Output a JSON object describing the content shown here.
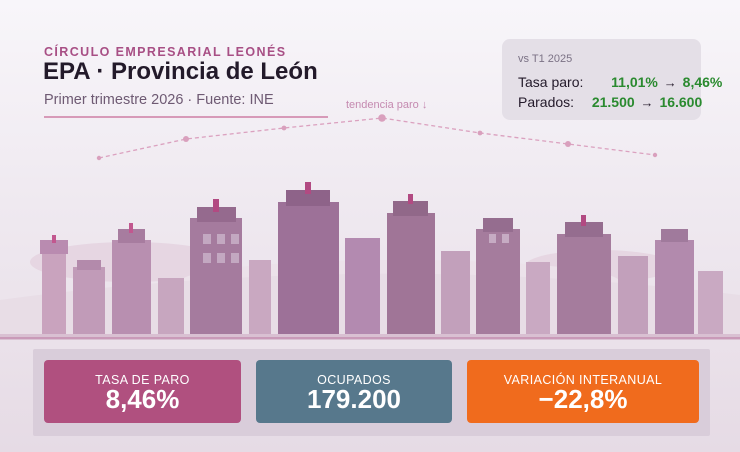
{
  "header": {
    "kicker": "CÍRCULO EMPRESARIAL LEONÉS",
    "title": "EPA · Provincia de León",
    "subtitle": "Primer trimestre 2026 · Fuente: INE"
  },
  "comparison": {
    "heading": "vs T1 2025",
    "rows": [
      {
        "label": "Tasa paro:",
        "from": "11,01%",
        "to": "8,46%"
      },
      {
        "label": "Parados:",
        "from": "21.500",
        "to": "16.600"
      }
    ],
    "arrow": "→"
  },
  "trend": {
    "label": "tendencia paro ↓"
  },
  "cards": [
    {
      "label": "TASA DE PARO",
      "value": "8,46%",
      "color": "#b0507f"
    },
    {
      "label": "OCUPADOS",
      "value": "179.200",
      "color": "#57788c"
    },
    {
      "label": "VARIACIÓN INTERANUAL",
      "value": "−22,8%",
      "color": "#f06b1d"
    }
  ],
  "colors": {
    "accent": "#a84f85",
    "positive_change": "#2a8a2f"
  }
}
